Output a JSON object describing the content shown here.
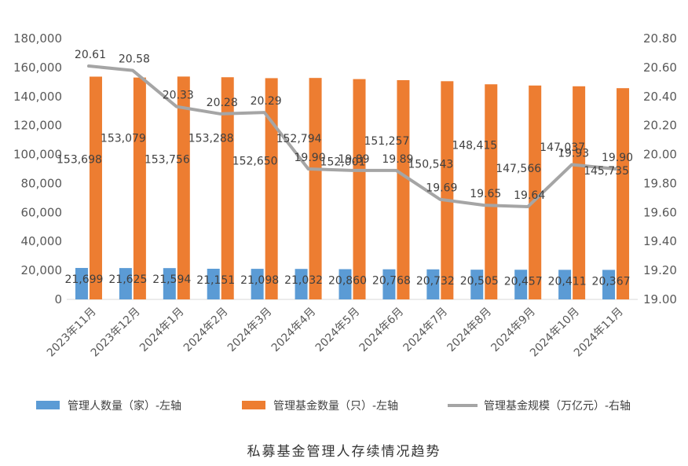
{
  "colors": {
    "managers": "#5b9bd5",
    "funds": "#ed7d31",
    "scale": "#a5a5a5"
  },
  "chart_data": {
    "type": "bar",
    "categories": [
      "2023年11月",
      "2023年12月",
      "2024年1月",
      "2024年2月",
      "2024年3月",
      "2024年4月",
      "2024年5月",
      "2024年6月",
      "2024年7月",
      "2024年8月",
      "2024年9月",
      "2024年10月",
      "2024年11月"
    ],
    "series": [
      {
        "name": "管理人数量（家）-左轴",
        "type": "bar",
        "axis": "left",
        "values": [
          21699,
          21625,
          21594,
          21151,
          21098,
          21032,
          20860,
          20768,
          20732,
          20505,
          20457,
          20411,
          20367
        ],
        "labels": [
          "21,699",
          "21,625",
          "21,594",
          "21,151",
          "21,098",
          "21,032",
          "20,860",
          "20,768",
          "20,732",
          "20,505",
          "20,457",
          "20,411",
          "20,367"
        ]
      },
      {
        "name": "管理基金数量（只）-左轴",
        "type": "bar",
        "axis": "left",
        "values": [
          153698,
          153079,
          153756,
          153288,
          152650,
          152794,
          152001,
          151257,
          150543,
          148415,
          147566,
          147037,
          145735
        ],
        "labels": [
          "153,698",
          "153,079",
          "153,756",
          "153,288",
          "152,650",
          "152,794",
          "152,001",
          "151,257",
          "150,543",
          "148,415",
          "147,566",
          "147,037",
          "145,735"
        ]
      },
      {
        "name": "管理基金规模（万亿元）-右轴",
        "type": "line",
        "axis": "right",
        "values": [
          20.61,
          20.58,
          20.33,
          20.28,
          20.29,
          19.9,
          19.89,
          19.89,
          19.69,
          19.65,
          19.64,
          19.93,
          19.9
        ],
        "labels": [
          "20.61",
          "20.58",
          "20.33",
          "20.28",
          "20.29",
          "19.90",
          "19.89",
          "19.89",
          "19.69",
          "19.65",
          "19.64",
          "19.93",
          "19.90"
        ]
      }
    ],
    "left_axis": {
      "ylim": [
        0,
        180000
      ],
      "ticks": [
        0,
        20000,
        40000,
        60000,
        80000,
        100000,
        120000,
        140000,
        160000,
        180000
      ],
      "tick_labels": [
        "0",
        "20,000",
        "40,000",
        "60,000",
        "80,000",
        "100,000",
        "120,000",
        "140,000",
        "160,000",
        "180,000"
      ]
    },
    "right_axis": {
      "ylim": [
        19.0,
        20.8
      ],
      "ticks": [
        19.0,
        19.2,
        19.4,
        19.6,
        19.8,
        20.0,
        20.2,
        20.4,
        20.6,
        20.8
      ],
      "tick_labels": [
        "19.00",
        "19.20",
        "19.40",
        "19.60",
        "19.80",
        "20.00",
        "20.20",
        "20.40",
        "20.60",
        "20.80"
      ]
    },
    "grid": false,
    "legend": "bottom",
    "caption": "私募基金管理人存续情况趋势"
  }
}
